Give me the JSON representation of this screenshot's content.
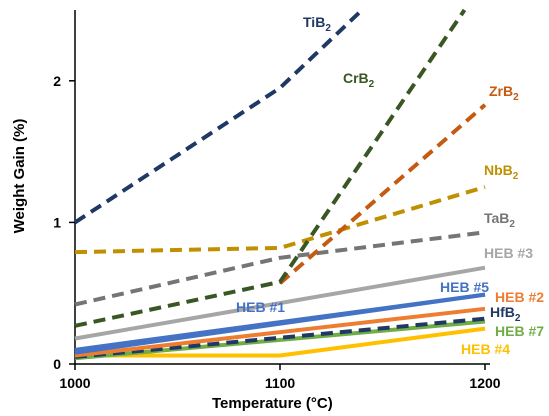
{
  "chart_data": {
    "type": "line",
    "title": "",
    "xlabel": "Temperature (°C)",
    "ylabel": "Weight Gain (%)",
    "xlim": [
      1000,
      1200
    ],
    "ylim": [
      0,
      2.5
    ],
    "x_ticks": [
      1000,
      1100,
      1200
    ],
    "y_ticks": [
      0,
      1,
      2
    ],
    "grid": false,
    "legend": "none",
    "series": [
      {
        "name": "TiB",
        "sub": "2",
        "color": "#1f3864",
        "style": "dashed",
        "x": [
          1000,
          1100,
          1140
        ],
        "y": [
          1.0,
          1.95,
          2.5
        ]
      },
      {
        "name": "CrB",
        "sub": "2",
        "color": "#385723",
        "style": "dashed",
        "x": [
          1000,
          1100,
          1190
        ],
        "y": [
          0.27,
          0.58,
          2.5
        ]
      },
      {
        "name": "ZrB",
        "sub": "2",
        "color": "#c55a11",
        "style": "dashed",
        "x": [
          1100,
          1200
        ],
        "y": [
          0.57,
          1.83
        ]
      },
      {
        "name": "NbB",
        "sub": "2",
        "color": "#bf9000",
        "style": "dashed",
        "x": [
          1000,
          1100,
          1200
        ],
        "y": [
          0.79,
          0.82,
          1.25
        ]
      },
      {
        "name": "TaB",
        "sub": "2",
        "color": "#757575",
        "style": "dashed",
        "x": [
          1000,
          1100,
          1200
        ],
        "y": [
          0.42,
          0.75,
          0.93
        ]
      },
      {
        "name": "HEB #3",
        "sub": "",
        "color": "#a6a6a6",
        "style": "solid",
        "x": [
          1000,
          1200
        ],
        "y": [
          0.18,
          0.68
        ]
      },
      {
        "name": "HEB #1",
        "sub": "",
        "color": "#4472c4",
        "style": "solid",
        "x": [
          1000,
          1200
        ],
        "y": [
          0.1,
          0.49
        ]
      },
      {
        "name": "HEB #5",
        "sub": "",
        "color": "#4472c4",
        "style": "solid",
        "x": [
          1000,
          1200
        ],
        "y": [
          0.08,
          0.49
        ]
      },
      {
        "name": "HEB #2",
        "sub": "",
        "color": "#ed7d31",
        "style": "solid",
        "x": [
          1000,
          1200
        ],
        "y": [
          0.06,
          0.39
        ]
      },
      {
        "name": "HfB",
        "sub": "2",
        "color": "#1f3864",
        "style": "dashed",
        "x": [
          1000,
          1200
        ],
        "y": [
          0.05,
          0.32
        ]
      },
      {
        "name": "HEB #7",
        "sub": "",
        "color": "#70ad47",
        "style": "solid",
        "x": [
          1000,
          1200
        ],
        "y": [
          0.04,
          0.3
        ]
      },
      {
        "name": "HEB #4",
        "sub": "",
        "color": "#ffc000",
        "style": "solid",
        "x": [
          1000,
          1100,
          1200
        ],
        "y": [
          0.06,
          0.06,
          0.25
        ]
      }
    ]
  }
}
